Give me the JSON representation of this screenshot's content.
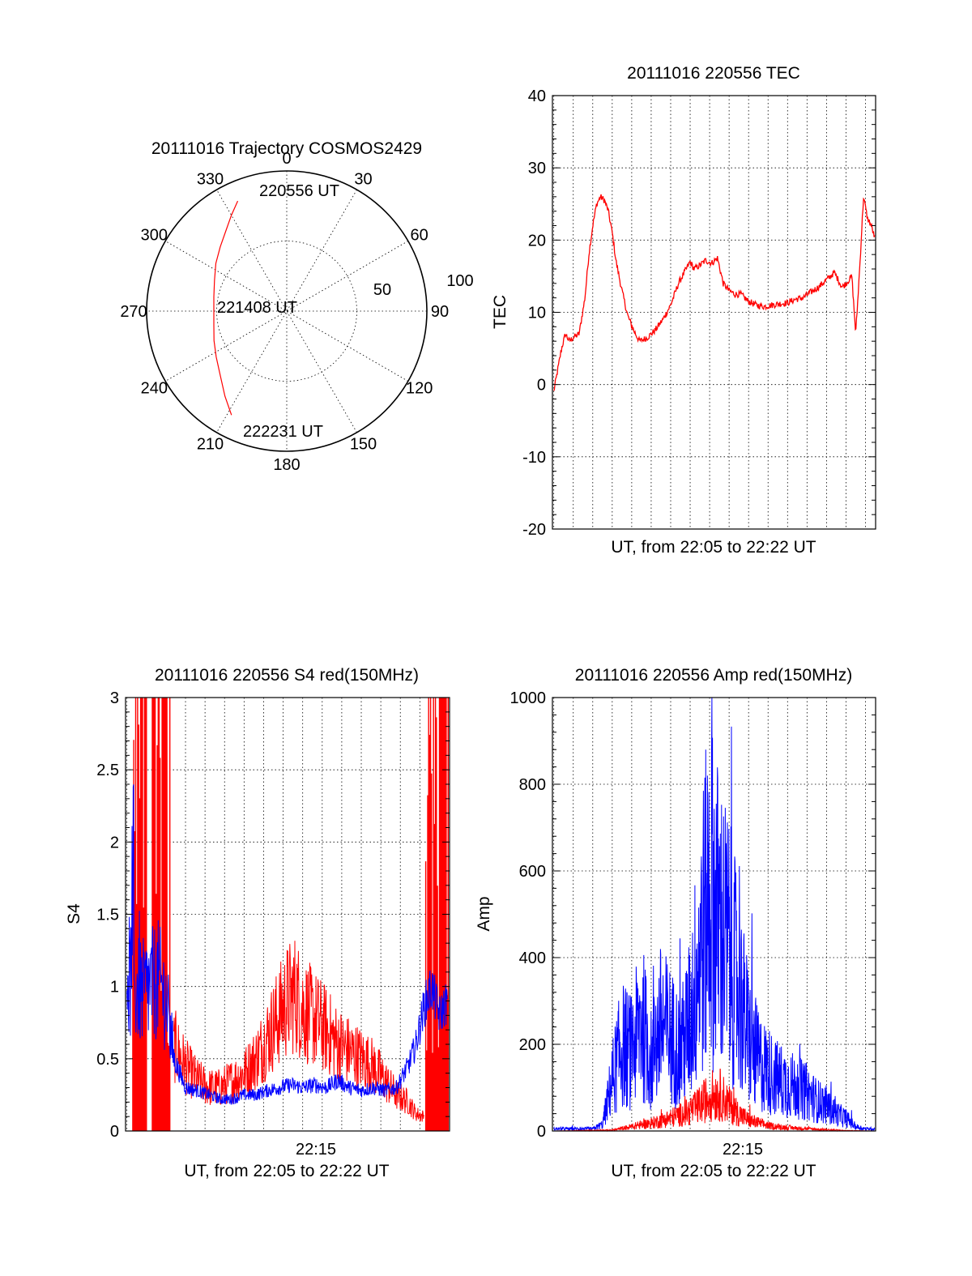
{
  "chart_data": [
    {
      "id": "trajectory",
      "type": "polar",
      "title": "20111016 Trajectory COSMOS2429",
      "angle_labels": [
        "0",
        "30",
        "60",
        "90",
        "120",
        "150",
        "180",
        "210",
        "240",
        "270",
        "300",
        "330"
      ],
      "radius_labels": [
        "50",
        "100"
      ],
      "rmax": 100,
      "grid": true,
      "colors": {
        "trajectory": "#ff0000"
      },
      "trajectory": {
        "azimuth_deg": [
          -24,
          -30,
          -37,
          -46,
          -56,
          -67,
          -79,
          -90,
          -101,
          -112,
          -123,
          -134,
          -144,
          -152
        ],
        "radius": [
          86,
          79,
          72,
          66,
          61,
          56,
          53,
          52,
          53,
          56,
          60,
          66,
          75,
          84
        ]
      },
      "annotations": [
        "220556 UT",
        "221408 UT",
        "222231 UT"
      ]
    },
    {
      "id": "tec",
      "type": "line",
      "title": "20111016 220556 TEC",
      "ylabel": "TEC",
      "xlabel": "UT, from 22:05 to 22:22 UT",
      "ylim": [
        -20,
        40
      ],
      "yticks": [
        "-20",
        "-10",
        "0",
        "10",
        "20",
        "30",
        "40"
      ],
      "xlim_minutes": [
        5.93,
        22.52
      ],
      "grid": true,
      "series": [
        {
          "color": "#ff0000",
          "x_minutes": [
            6.0,
            6.2,
            6.4,
            6.6,
            6.8,
            7.0,
            7.3,
            7.6,
            7.8,
            8.0,
            8.2,
            8.4,
            8.6,
            8.8,
            9.0,
            9.2,
            9.5,
            9.8,
            10.1,
            10.4,
            10.8,
            11.2,
            11.6,
            12.0,
            12.4,
            12.8,
            13.0,
            13.2,
            13.5,
            13.8,
            14.1,
            14.4,
            14.7,
            15.0,
            15.3,
            15.6,
            16.0,
            16.4,
            16.8,
            17.2,
            17.6,
            18.0,
            18.4,
            18.8,
            19.2,
            19.6,
            20.0,
            20.4,
            20.8,
            21.0,
            21.3,
            21.5,
            21.7,
            21.9,
            22.1,
            22.3,
            22.5
          ],
          "values": [
            -1,
            2,
            5,
            7,
            6,
            6.5,
            7,
            12,
            18,
            22,
            25,
            26,
            25.5,
            24,
            21,
            17,
            13,
            9.5,
            7.5,
            6,
            6.5,
            7.5,
            9,
            11,
            14,
            16,
            17,
            16,
            16.5,
            17.2,
            16.8,
            17.5,
            14,
            13,
            12.5,
            12.5,
            11.5,
            11,
            10.8,
            11,
            11.2,
            11.3,
            11.8,
            12,
            12.8,
            13.5,
            14.5,
            15.5,
            13.5,
            14,
            15,
            7,
            16,
            26,
            23,
            22,
            20
          ]
        }
      ]
    },
    {
      "id": "s4",
      "type": "line",
      "title": "20111016 220556 S4 red(150MHz)",
      "ylabel": "S4",
      "xlabel": "UT, from 22:05 to 22:22 UT",
      "xtick_labels": [
        "22:15"
      ],
      "ylim": [
        0,
        3
      ],
      "yticks": [
        "0",
        "0.5",
        "1",
        "1.5",
        "2",
        "2.5",
        "3"
      ],
      "xlim_minutes": [
        5.93,
        22.52
      ],
      "grid": true,
      "series": [
        {
          "color": "#ff0000",
          "x_minutes": [
            8.4,
            9.0,
            9.6,
            10.2,
            10.8,
            11.4,
            12.0,
            12.6,
            13.2,
            13.8,
            14.2,
            14.6,
            15.0,
            15.4,
            15.8,
            16.2,
            16.8,
            17.4,
            18.0,
            18.6,
            19.2,
            19.8,
            20.4,
            20.8,
            21.2
          ],
          "values": [
            0.6,
            0.45,
            0.35,
            0.3,
            0.3,
            0.35,
            0.4,
            0.5,
            0.65,
            0.8,
            0.9,
            0.95,
            0.85,
            0.8,
            0.75,
            0.7,
            0.6,
            0.55,
            0.5,
            0.45,
            0.35,
            0.25,
            0.2,
            0.12,
            0.1
          ]
        },
        {
          "color": "#0000ff",
          "x_minutes": [
            6.0,
            6.4,
            6.8,
            7.2,
            7.6,
            8.0,
            8.4,
            9.0,
            9.6,
            10.2,
            10.8,
            11.4,
            12.0,
            12.6,
            13.2,
            13.8,
            14.4,
            15.0,
            15.6,
            16.2,
            16.8,
            17.4,
            18.0,
            18.6,
            19.2,
            19.8,
            20.4,
            20.8,
            21.2,
            21.6,
            22.0,
            22.4
          ],
          "values": [
            1.1,
            1.0,
            0.95,
            1.0,
            1.05,
            0.9,
            0.5,
            0.3,
            0.28,
            0.25,
            0.22,
            0.22,
            0.25,
            0.25,
            0.28,
            0.3,
            0.32,
            0.3,
            0.32,
            0.3,
            0.35,
            0.3,
            0.28,
            0.3,
            0.28,
            0.3,
            0.45,
            0.6,
            0.85,
            1.0,
            0.8,
            0.9
          ]
        }
      ]
    },
    {
      "id": "amp",
      "type": "line",
      "title": "20111016 220556 Amp red(150MHz)",
      "ylabel": "Amp",
      "xlabel": "UT, from 22:05 to 22:22 UT",
      "xtick_labels": [
        "22:15"
      ],
      "ylim": [
        0,
        1000
      ],
      "yticks": [
        "0",
        "200",
        "400",
        "600",
        "800",
        "1000"
      ],
      "xlim_minutes": [
        5.93,
        22.52
      ],
      "grid": true,
      "series": [
        {
          "color": "#0000ff",
          "x_minutes": [
            6.0,
            8.0,
            8.5,
            9.0,
            9.5,
            10.0,
            10.5,
            11.0,
            11.5,
            12.0,
            12.5,
            13.0,
            13.5,
            14.0,
            14.5,
            15.0,
            15.5,
            16.0,
            16.5,
            17.0,
            17.5,
            18.0,
            18.5,
            19.0,
            19.5,
            20.0,
            20.5,
            21.0,
            21.5,
            22.0,
            22.5
          ],
          "values": [
            5,
            5,
            15,
            120,
            200,
            180,
            260,
            160,
            250,
            220,
            180,
            260,
            420,
            560,
            480,
            420,
            320,
            220,
            160,
            140,
            120,
            110,
            100,
            90,
            70,
            60,
            40,
            30,
            10,
            5,
            5
          ]
        },
        {
          "color": "#ff0000",
          "x_minutes": [
            6.0,
            9.0,
            10.0,
            11.0,
            12.0,
            13.0,
            13.5,
            14.0,
            14.5,
            15.0,
            15.5,
            16.0,
            17.0,
            18.0,
            19.0,
            20.0,
            21.0,
            22.5
          ],
          "values": [
            0,
            2,
            10,
            18,
            30,
            45,
            60,
            80,
            85,
            60,
            40,
            25,
            12,
            8,
            5,
            3,
            1,
            0
          ]
        }
      ]
    }
  ]
}
